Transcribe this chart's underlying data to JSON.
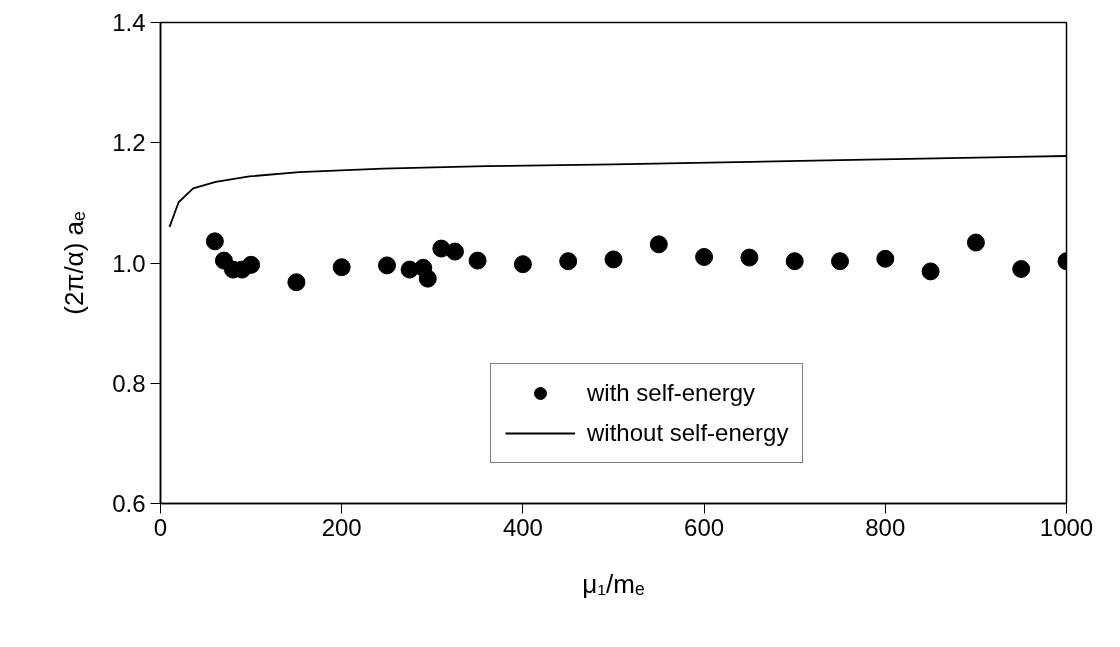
{
  "chart_data": {
    "type": "scatter",
    "xlabel": "μ₁/mₑ",
    "ylabel": "(2π/α) aₑ",
    "xlim": [
      0,
      1000
    ],
    "xticks": [
      0,
      200,
      400,
      600,
      800,
      1000
    ],
    "ylim": [
      0.6,
      1.4
    ],
    "yticks": [
      {
        "value": 0.6,
        "label": "0.6"
      },
      {
        "value": 0.8,
        "label": "0.8"
      },
      {
        "value": 1.0,
        "label": "1.0"
      },
      {
        "value": 1.2,
        "label": "1.2"
      },
      {
        "value": 1.4,
        "label": "1.4"
      }
    ],
    "grid": false,
    "legend": "bottom right",
    "series": [
      {
        "name": "with self-energy",
        "marker": "circle",
        "color": "#000000",
        "x": [
          60,
          70,
          80,
          90,
          100,
          150,
          200,
          250,
          275,
          290,
          295,
          310,
          325,
          350,
          400,
          450,
          500,
          550,
          600,
          650,
          700,
          750,
          800,
          850,
          900,
          950,
          1000
        ],
        "values": [
          1.036,
          1.004,
          0.989,
          0.989,
          0.997,
          0.968,
          0.993,
          0.996,
          0.989,
          0.992,
          0.974,
          1.024,
          1.019,
          1.004,
          0.998,
          1.003,
          1.006,
          1.031,
          1.01,
          1.009,
          1.003,
          1.003,
          1.007,
          0.986,
          1.034,
          0.99,
          1.003
        ]
      },
      {
        "name": "without self-energy",
        "type": "line",
        "line_style": "solid",
        "color": "#000000",
        "x": [
          10,
          20,
          36,
          61,
          98,
          153,
          245,
          359,
          500,
          750,
          1000
        ],
        "values": [
          1.06,
          1.101,
          1.124,
          1.135,
          1.144,
          1.151,
          1.157,
          1.161,
          1.164,
          1.171,
          1.178
        ]
      }
    ]
  }
}
